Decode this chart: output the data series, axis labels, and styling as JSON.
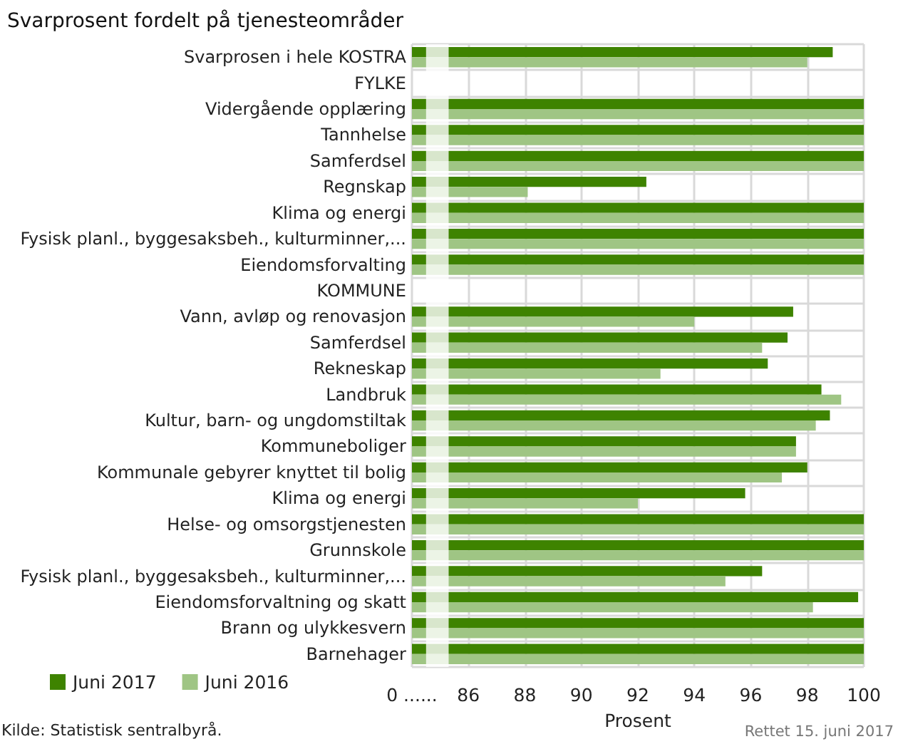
{
  "chart_data": {
    "type": "bar",
    "orientation": "horizontal",
    "title": "Svarprosent fordelt på tjenesteområder",
    "xlabel": "Prosent",
    "categories": [
      "Svarprosen i hele KOSTRA",
      "FYLKE",
      "Vidergående opplæring",
      "Tannhelse",
      "Samferdsel",
      "Regnskap",
      "Klima og energi",
      "Fysisk planl., byggesaksbeh., kulturminner,...",
      "Eiendomsforvalting",
      "KOMMUNE",
      "Vann, avløp og renovasjon",
      "Samferdsel",
      "Rekneskap",
      "Landbruk",
      "Kultur, barn- og ungdomstiltak",
      "Kommuneboliger",
      "Kommunale gebyrer knyttet til bolig",
      "Klima og energi",
      "Helse- og omsorgstjenesten",
      "Grunnskole",
      "Fysisk planl., byggesaksbeh., kulturminner,...",
      "Eiendomsforvaltning og skatt",
      "Brann og ulykkesvern",
      "Barnehager"
    ],
    "series": [
      {
        "name": "Juni 2017",
        "color": "#3e8300",
        "values": [
          98.9,
          null,
          100,
          100,
          100,
          92.3,
          100,
          100,
          100,
          null,
          97.5,
          97.3,
          96.6,
          98.5,
          98.8,
          97.6,
          98.0,
          95.8,
          100,
          100,
          96.4,
          99.8,
          100,
          100
        ]
      },
      {
        "name": "Juni 2016",
        "color": "#9fc584",
        "values": [
          98.0,
          null,
          100,
          100,
          100,
          88.1,
          100,
          100,
          100,
          null,
          94.0,
          96.4,
          92.8,
          99.2,
          98.3,
          97.6,
          97.1,
          92.0,
          100,
          100,
          95.1,
          98.2,
          100,
          100
        ]
      }
    ],
    "xlim": [
      84,
      100
    ],
    "xticks": [
      {
        "value": 84,
        "label": "0 ......"
      },
      86,
      88,
      90,
      92,
      94,
      96,
      98,
      100
    ],
    "bands": [
      {
        "axis": "x",
        "from": 84.5,
        "to": 85.3,
        "color": "#ffffff"
      }
    ],
    "grid": true,
    "legend": "bottom left",
    "annotations": [
      "Kilde: Statistisk sentralbyrå.",
      "Rettet 15. juni 2017"
    ]
  }
}
